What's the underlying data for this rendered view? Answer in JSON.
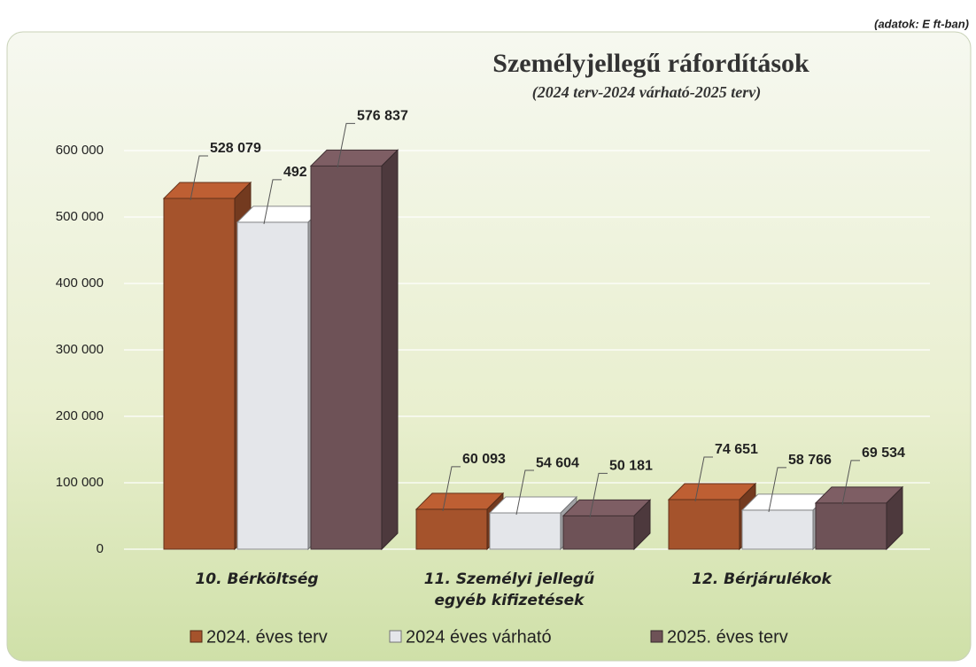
{
  "note": "(adatok: E ft-ban)",
  "chart_data": {
    "type": "bar3d",
    "title": "Személyjellegű ráfordítások",
    "subtitle": "(2024 terv-2024 várható-2025 terv)",
    "categories": [
      "10. Bérköltség",
      "11. Személyi jellegű egyéb kifizetések",
      "12. Bérjárulékok"
    ],
    "series": [
      {
        "name": "2024. éves terv",
        "color": "#a5532c",
        "values": [
          528079,
          60093,
          74651
        ],
        "value_labels": [
          "528 079",
          "60 093",
          "74 651"
        ]
      },
      {
        "name": "2024 éves várható",
        "color": "#e4e6ea",
        "values": [
          492178,
          54604,
          58766
        ],
        "value_labels": [
          "492 178",
          "54 604",
          "58 766"
        ]
      },
      {
        "name": "2025. éves terv",
        "color": "#6e5257",
        "values": [
          576837,
          50181,
          69534
        ],
        "value_labels": [
          "576 837",
          "50 181",
          "69 534"
        ]
      }
    ],
    "ylim": [
      0,
      600000
    ],
    "yticks": [
      0,
      {
        "value": 100000,
        "label": "100 000"
      },
      {
        "value": 200000,
        "label": "200 000"
      },
      {
        "value": 300000,
        "label": "300 000"
      },
      {
        "value": 400000,
        "label": "400 000"
      },
      {
        "value": 500000,
        "label": "500 000"
      },
      {
        "value": 600000,
        "label": "600 000"
      }
    ],
    "grid": true,
    "legend": "bottom"
  }
}
